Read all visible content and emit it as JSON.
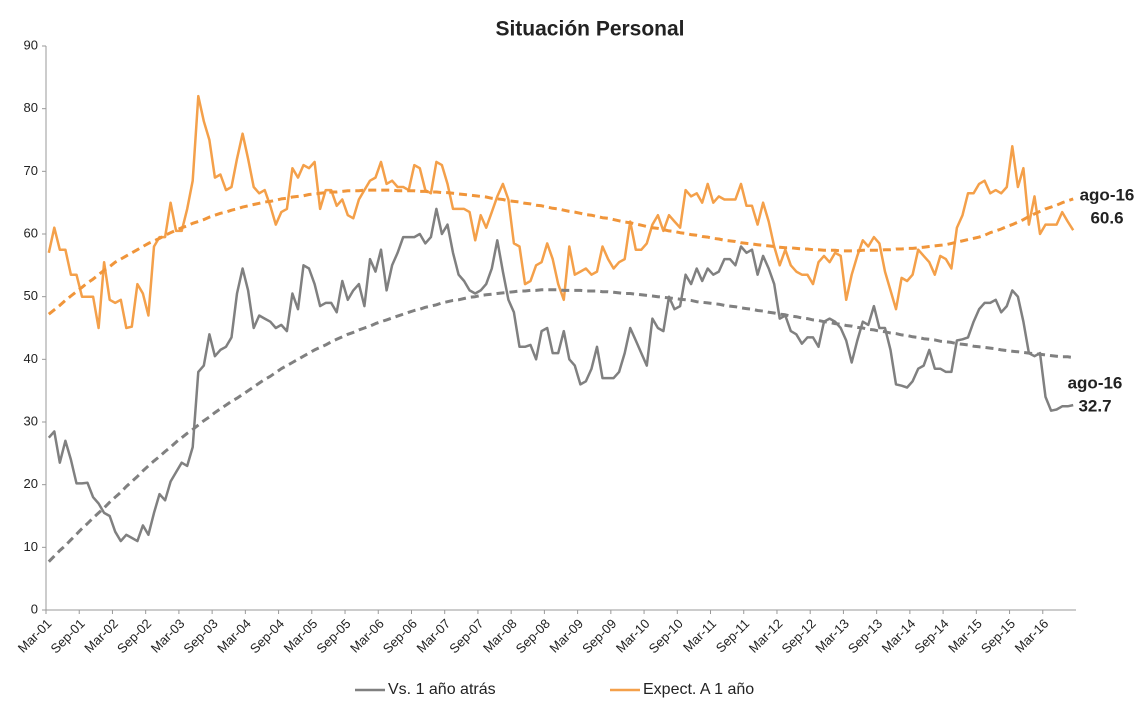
{
  "chart_data": {
    "type": "line",
    "title": "Situación Personal",
    "categories": [
      "Mar-01",
      null,
      null,
      null,
      null,
      null,
      "Sep-01",
      null,
      null,
      null,
      null,
      null,
      "Mar-02",
      null,
      null,
      null,
      null,
      null,
      "Sep-02",
      null,
      null,
      null,
      null,
      null,
      "Mar-03",
      null,
      null,
      null,
      null,
      null,
      "Sep-03",
      null,
      null,
      null,
      null,
      null,
      "Mar-04",
      null,
      null,
      null,
      null,
      null,
      "Sep-04",
      null,
      null,
      null,
      null,
      null,
      "Mar-05",
      null,
      null,
      null,
      null,
      null,
      "Sep-05",
      null,
      null,
      null,
      null,
      null,
      "Mar-06",
      null,
      null,
      null,
      null,
      null,
      "Sep-06",
      null,
      null,
      null,
      null,
      null,
      "Mar-07",
      null,
      null,
      null,
      null,
      null,
      "Sep-07",
      null,
      null,
      null,
      null,
      null,
      "Mar-08",
      null,
      null,
      null,
      null,
      null,
      "Sep-08",
      null,
      null,
      null,
      null,
      null,
      "Mar-09",
      null,
      null,
      null,
      null,
      null,
      "Sep-09",
      null,
      null,
      null,
      null,
      null,
      "Mar-10",
      null,
      null,
      null,
      null,
      null,
      "Sep-10",
      null,
      null,
      null,
      null,
      null,
      "Mar-11",
      null,
      null,
      null,
      null,
      null,
      "Sep-11",
      null,
      null,
      null,
      null,
      null,
      "Mar-12",
      null,
      null,
      null,
      null,
      null,
      "Sep-12",
      null,
      null,
      null,
      null,
      null,
      "Mar-13",
      null,
      null,
      null,
      null,
      null,
      "Sep-13",
      null,
      null,
      null,
      null,
      null,
      "Mar-14",
      null,
      null,
      null,
      null,
      null,
      "Sep-14",
      null,
      null,
      null,
      null,
      null,
      "Mar-15",
      null,
      null,
      null,
      null,
      null,
      "Sep-15",
      null,
      null,
      null,
      null,
      null,
      "Mar-16",
      null,
      null,
      null,
      null,
      null
    ],
    "series": [
      {
        "name": "Vs. 1 año atrás",
        "color": "#808080",
        "values": [
          27.5,
          28.5,
          23.5,
          27,
          24,
          20.2,
          20.2,
          20.3,
          18,
          17,
          15.5,
          15,
          12.5,
          11,
          12,
          11.5,
          11,
          13.5,
          12,
          15.5,
          18.5,
          17.5,
          20.5,
          22,
          23.5,
          23,
          26,
          38,
          39,
          44,
          40.5,
          41.5,
          42,
          43.5,
          50.5,
          54.5,
          51,
          45,
          47,
          46.5,
          46,
          45,
          45.5,
          44.5,
          50.5,
          48,
          55,
          54.5,
          52,
          48.5,
          49,
          49,
          47.5,
          52.5,
          49.5,
          51,
          52,
          48.5,
          56,
          54,
          57.5,
          51,
          55,
          57,
          59.5,
          59.5,
          59.5,
          60,
          58.5,
          59.5,
          64,
          60,
          61.5,
          57,
          53.5,
          52.5,
          51,
          50.5,
          51,
          52,
          54.5,
          59,
          54,
          49.5,
          47.5,
          42,
          42,
          42.3,
          40,
          44.5,
          45,
          41,
          41,
          44.5,
          40,
          39,
          36,
          36.5,
          38.5,
          42,
          37,
          37,
          37,
          38,
          41,
          45,
          43,
          41,
          39,
          46.5,
          45,
          44.5,
          50,
          48,
          48.5,
          53.5,
          52,
          54.5,
          52.5,
          54.5,
          53.5,
          54,
          56,
          56,
          55,
          58,
          57,
          57.5,
          53.5,
          56.5,
          54.5,
          52,
          46.5,
          47,
          44.5,
          44,
          42.5,
          43.5,
          43.5,
          42,
          46,
          46.5,
          46,
          45,
          43,
          39.5,
          43,
          46,
          45.5,
          48.5,
          45,
          45,
          41.5,
          36,
          35.8,
          35.5,
          36.5,
          38.5,
          39,
          41.5,
          38.5,
          38.5,
          38,
          38,
          43,
          43.2,
          43.5,
          46,
          48,
          49,
          49,
          49.5,
          47.5,
          48.5,
          51,
          50,
          46,
          41,
          40.5,
          41,
          34,
          31.8,
          32,
          32.5,
          32.5,
          32.7
        ]
      },
      {
        "name": "Expect. A 1 año",
        "color": "#f4a04a",
        "values": [
          57,
          61,
          57.5,
          57.5,
          53.5,
          53.5,
          50,
          50,
          50,
          45,
          55.5,
          49.5,
          49,
          49.5,
          45,
          45.2,
          52,
          50.5,
          47,
          58,
          59.5,
          59.5,
          65,
          60.5,
          60.5,
          64,
          68.5,
          82,
          78,
          75,
          69,
          69.5,
          67,
          67.5,
          72,
          76,
          72,
          67.5,
          66.5,
          67,
          64.5,
          61.5,
          63.5,
          64,
          70.5,
          69,
          71,
          70.5,
          71.5,
          64,
          67,
          67,
          64.5,
          65.5,
          63,
          62.5,
          65.5,
          67,
          68.5,
          69,
          71.5,
          68,
          68.5,
          67.5,
          67.5,
          67,
          71,
          70.5,
          67,
          66.5,
          71.5,
          71,
          68,
          64,
          64,
          64,
          63.5,
          59,
          63,
          61,
          63.5,
          66,
          68,
          65.5,
          58.5,
          58,
          52,
          52.5,
          55,
          55.5,
          58.5,
          56,
          52,
          49.5,
          58,
          53.5,
          54,
          54.5,
          53.5,
          54,
          58,
          56,
          54.5,
          55.5,
          56,
          62,
          57.5,
          57.5,
          58.5,
          61.5,
          63,
          60.5,
          63,
          62,
          61,
          67,
          66,
          66.5,
          65,
          68,
          65,
          66,
          65.5,
          65.5,
          65.5,
          68,
          64.5,
          64.5,
          61.5,
          65,
          62,
          58,
          55,
          57.5,
          55,
          54,
          53.5,
          53.5,
          52,
          55.5,
          56.5,
          55.5,
          57,
          56.5,
          49.5,
          53.5,
          56.5,
          59,
          58,
          59.5,
          58.5,
          54,
          51,
          48,
          53,
          52.5,
          53.5,
          57.5,
          56.5,
          55.5,
          53.5,
          56.5,
          56,
          54.5,
          61,
          63,
          66.5,
          66.5,
          68,
          68.5,
          66.5,
          67,
          66.5,
          67.5,
          74,
          67.5,
          70.5,
          61.5,
          66,
          60,
          61.5,
          61.5,
          61.5,
          63.5,
          62,
          60.6
        ]
      },
      {
        "color": "#808080",
        "dashed": true,
        "values": [
          7.7,
          8.6,
          9.5,
          10.3,
          11.2,
          12.1,
          13,
          13.8,
          14.7,
          15.5,
          16.3,
          17.2,
          18,
          18.8,
          19.7,
          20.5,
          21.3,
          22.2,
          23,
          23.8,
          24.5,
          25.3,
          26,
          26.8,
          27.5,
          28.2,
          28.8,
          29.5,
          30.2,
          30.8,
          31.5,
          32.1,
          32.7,
          33.3,
          33.8,
          34.4,
          35,
          35.6,
          36.2,
          36.8,
          37.3,
          37.9,
          38.5,
          39,
          39.5,
          40,
          40.5,
          41,
          41.5,
          41.9,
          42.3,
          42.8,
          43.2,
          43.6,
          44,
          44.3,
          44.7,
          45,
          45.3,
          45.7,
          46,
          46.3,
          46.6,
          46.9,
          47.2,
          47.5,
          47.8,
          48,
          48.3,
          48.5,
          48.7,
          49,
          49.2,
          49.4,
          49.5,
          49.7,
          49.9,
          50,
          50.2,
          50.3,
          50.4,
          50.5,
          50.6,
          50.7,
          50.8,
          50.9,
          50.9,
          51,
          51,
          51.1,
          51.1,
          51.1,
          51.1,
          51,
          51,
          51,
          51,
          50.9,
          50.9,
          50.9,
          50.8,
          50.8,
          50.7,
          50.6,
          50.5,
          50.5,
          50.4,
          50.3,
          50.2,
          50.1,
          50,
          49.9,
          49.8,
          49.7,
          49.6,
          49.5,
          49.4,
          49.2,
          49.1,
          49,
          48.9,
          48.8,
          48.6,
          48.5,
          48.4,
          48.2,
          48.1,
          48,
          47.8,
          47.7,
          47.5,
          47.4,
          47.2,
          47.1,
          46.9,
          46.8,
          46.6,
          46.5,
          46.3,
          46.2,
          46,
          45.9,
          45.7,
          45.6,
          45.4,
          45.3,
          45.1,
          45,
          44.8,
          44.7,
          44.5,
          44.4,
          44.2,
          44.1,
          43.9,
          43.8,
          43.6,
          43.5,
          43.3,
          43.2,
          43.1,
          42.9,
          42.8,
          42.7,
          42.5,
          42.4,
          42.3,
          42.1,
          42,
          41.9,
          41.8,
          41.7,
          41.5,
          41.4,
          41.3,
          41.2,
          41.1,
          41,
          40.9,
          40.8,
          40.7,
          40.6,
          40.5,
          40.4,
          40.4,
          40.3
        ]
      },
      {
        "color": "#f0953a",
        "dashed": true,
        "values": [
          47.2,
          47.9,
          48.6,
          49.4,
          50.1,
          50.8,
          51.5,
          52.2,
          52.8,
          53.5,
          54.2,
          54.8,
          55.5,
          56,
          56.5,
          57,
          57.5,
          58,
          58.5,
          58.9,
          59.3,
          59.8,
          60.2,
          60.6,
          61,
          61.3,
          61.7,
          62,
          62.3,
          62.7,
          63,
          63.3,
          63.5,
          63.8,
          64,
          64.3,
          64.5,
          64.7,
          64.9,
          65.1,
          65.2,
          65.4,
          65.6,
          65.7,
          65.9,
          66,
          66.1,
          66.3,
          66.4,
          66.5,
          66.6,
          66.7,
          66.7,
          66.8,
          66.9,
          66.9,
          66.9,
          67,
          67,
          67,
          67,
          67,
          67,
          66.9,
          66.9,
          66.9,
          66.9,
          66.8,
          66.8,
          66.7,
          66.7,
          66.6,
          66.6,
          66.5,
          66.4,
          66.3,
          66.2,
          66.1,
          66,
          65.9,
          65.7,
          65.6,
          65.5,
          65.3,
          65.2,
          65.1,
          64.9,
          64.8,
          64.6,
          64.5,
          64.3,
          64.1,
          64,
          63.8,
          63.6,
          63.5,
          63.3,
          63.1,
          63,
          62.8,
          62.6,
          62.5,
          62.3,
          62.1,
          61.9,
          61.8,
          61.6,
          61.4,
          61.2,
          61,
          60.9,
          60.7,
          60.5,
          60.4,
          60.2,
          60.1,
          59.9,
          59.8,
          59.6,
          59.5,
          59.3,
          59.2,
          59,
          58.9,
          58.8,
          58.6,
          58.5,
          58.4,
          58.3,
          58.2,
          58.1,
          58,
          57.9,
          57.8,
          57.8,
          57.7,
          57.6,
          57.6,
          57.5,
          57.5,
          57.4,
          57.4,
          57.4,
          57.3,
          57.3,
          57.3,
          57.3,
          57.4,
          57.4,
          57.4,
          57.4,
          57.5,
          57.5,
          57.6,
          57.6,
          57.7,
          57.7,
          57.8,
          57.9,
          58,
          58.1,
          58.2,
          58.3,
          58.5,
          58.7,
          58.9,
          59.1,
          59.3,
          59.5,
          59.8,
          60.2,
          60.5,
          60.8,
          61.2,
          61.5,
          61.9,
          62.3,
          62.8,
          63.2,
          63.6,
          64,
          64.3,
          64.6,
          65,
          65.3,
          65.6
        ]
      }
    ],
    "annotations": [
      {
        "label": "ago-16",
        "value": 60.6
      },
      {
        "label": "ago-16",
        "value": 32.7
      }
    ],
    "ylim": [
      0,
      90
    ],
    "yticks": [
      0,
      10,
      20,
      30,
      40,
      50,
      60,
      70,
      80,
      90
    ],
    "grid": false,
    "legend": "bottom"
  }
}
